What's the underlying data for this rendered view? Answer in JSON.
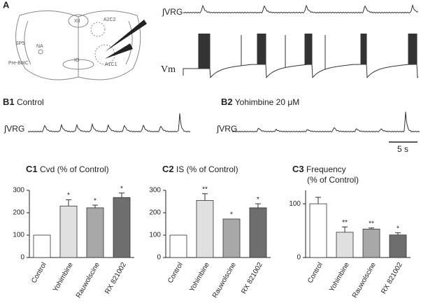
{
  "panel_a": {
    "label": "A",
    "diagram_labels": [
      "XII",
      "SP5",
      "NA",
      "Pre-BötC",
      "IO",
      "A2C2",
      "A1C1"
    ],
    "trace_labels": [
      "∫VRG",
      "Vm"
    ]
  },
  "panel_b1": {
    "label": "B1",
    "title": "Control",
    "trace_label": "∫VRG"
  },
  "panel_b2": {
    "label": "B2",
    "title": "Yohimbine 20 μM",
    "trace_label": "∫VRG",
    "scale_bar": "5 s"
  },
  "chart_data": [
    {
      "type": "bar",
      "panel": "C1",
      "title": "Cvd  (% of Control)",
      "categories": [
        "Control",
        "Yohimbine",
        "Rauwolscine",
        "RX 821002"
      ],
      "values": [
        100,
        230,
        222,
        268
      ],
      "errors": [
        null,
        28,
        12,
        20
      ],
      "annotations": [
        null,
        "*",
        "*",
        "*"
      ],
      "colors": [
        "#ffffff",
        "#e0e0e0",
        "#a8a8a8",
        "#6e6e6e"
      ],
      "ylim": [
        0,
        300
      ],
      "yticks": [
        0,
        100,
        200,
        300
      ]
    },
    {
      "type": "bar",
      "panel": "C2",
      "title": "IS  (% of Control)",
      "categories": [
        "Control",
        "Yohimbine",
        "Rauwolscine",
        "RX 821002"
      ],
      "values": [
        100,
        255,
        172,
        222
      ],
      "errors": [
        null,
        30,
        null,
        18
      ],
      "annotations": [
        null,
        "**",
        "*",
        "*"
      ],
      "colors": [
        "#ffffff",
        "#e0e0e0",
        "#a8a8a8",
        "#6e6e6e"
      ],
      "ylim": [
        0,
        300
      ],
      "yticks": [
        0,
        100,
        200,
        300
      ]
    },
    {
      "type": "bar",
      "panel": "C3",
      "title": "Frequency",
      "subtitle": "(% of Control)",
      "categories": [
        "Control",
        "Yohimbine",
        "Rauwolscine",
        "RX 821002"
      ],
      "values": [
        100,
        47,
        53,
        42
      ],
      "errors": [
        12,
        10,
        2,
        4
      ],
      "annotations": [
        null,
        "**",
        "**",
        "*"
      ],
      "colors": [
        "#ffffff",
        "#e0e0e0",
        "#a8a8a8",
        "#6e6e6e"
      ],
      "ylim": [
        0,
        125
      ],
      "yticks": [
        0,
        100
      ]
    }
  ]
}
